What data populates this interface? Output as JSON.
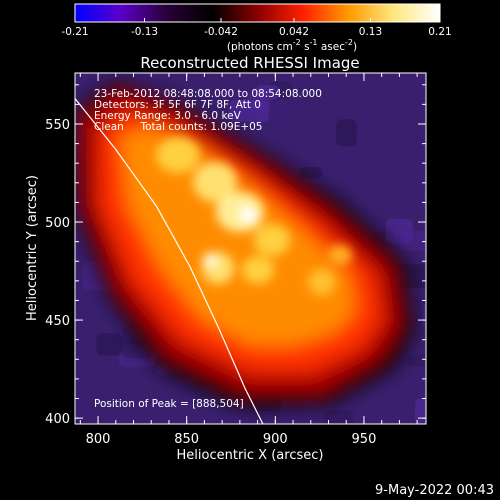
{
  "chart_data": {
    "type": "heatmap",
    "title": "Reconstructed RHESSI Image",
    "colorbar": {
      "ticks": [
        "-0.21",
        "-0.13",
        "-0.042",
        "0.042",
        "0.13",
        "0.21"
      ],
      "range": [
        -0.21,
        0.21
      ],
      "unit_prefix": "(photons cm",
      "unit_exp1": "-2",
      "unit_mid1": " s",
      "unit_exp2": "-1",
      "unit_mid2": " asec",
      "unit_exp3": "-2",
      "unit_suffix": ")",
      "colormap": [
        "#0000ff",
        "#5a00c8",
        "#2a0038",
        "#000000",
        "#8a0000",
        "#ff2000",
        "#ff9a00",
        "#ffe880",
        "#ffffff"
      ]
    },
    "xlabel": "Heliocentric X (arcsec)",
    "ylabel": "Heliocentric Y (arcsec)",
    "xlim": [
      787,
      985
    ],
    "ylim": [
      397,
      576
    ],
    "x_ticks": [
      "800",
      "850",
      "900",
      "950"
    ],
    "x_tick_values": [
      800,
      850,
      900,
      950
    ],
    "y_ticks": [
      "400",
      "450",
      "500",
      "550"
    ],
    "y_tick_values": [
      400,
      450,
      500,
      550
    ],
    "annotations": [
      "23-Feb-2012 08:48:08.000 to 08:54:08.000",
      "Detectors: 3F 5F 6F 7F 8F, Att 0",
      "Energy Range: 3.0 - 6.0 keV",
      "Clean     Total counts: 1.09E+05"
    ],
    "peak_label": "Position of Peak = [888,504]",
    "peak": [
      888,
      504
    ],
    "limb_curve": [
      [
        787,
        563
      ],
      [
        810,
        537
      ],
      [
        833,
        508
      ],
      [
        852,
        477
      ],
      [
        868,
        446
      ],
      [
        883,
        415
      ],
      [
        893,
        397
      ]
    ]
  },
  "footer": {
    "date": "9-May-2022 00:43"
  }
}
